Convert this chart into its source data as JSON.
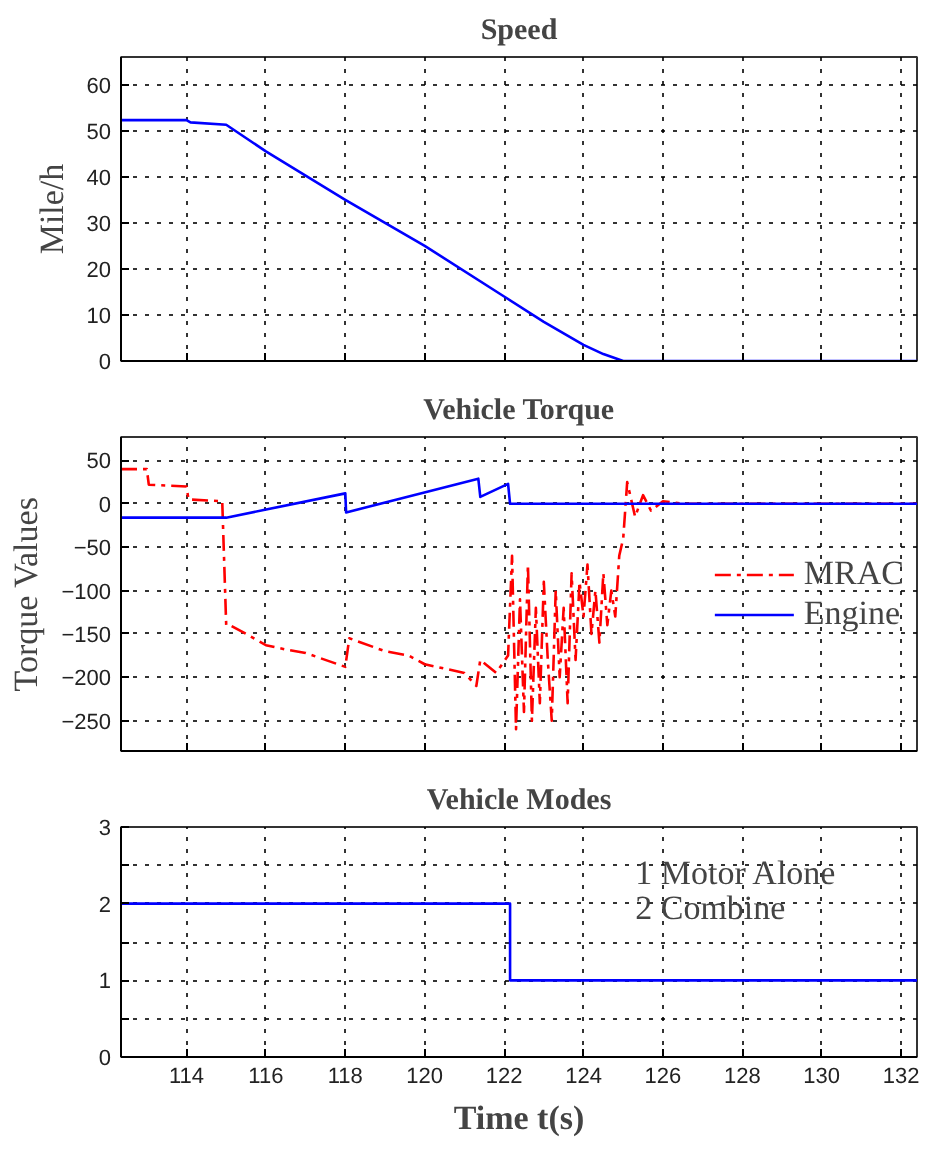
{
  "chart_data": [
    {
      "type": "line",
      "title": "Speed",
      "ylabel": "Mile/h",
      "xlim": [
        112.35,
        132.4
      ],
      "ylim": [
        0,
        66
      ],
      "xticks": [
        114,
        116,
        118,
        120,
        122,
        124,
        126,
        128,
        130,
        132
      ],
      "yticks": [
        0,
        10,
        20,
        30,
        40,
        50,
        60
      ],
      "tick_labels": "y",
      "grid": true,
      "line_style": "solid",
      "series": [
        {
          "color": "#0000ff",
          "x": [
            112.35,
            114.0,
            114.1,
            115.0,
            116.0,
            118.0,
            120.0,
            122.0,
            123.0,
            124.0,
            124.5,
            125.0,
            132.4
          ],
          "values": [
            52.3,
            52.3,
            51.8,
            51.3,
            45.5,
            35,
            25,
            14,
            8.5,
            3.5,
            1.5,
            0,
            0
          ]
        }
      ]
    },
    {
      "type": "line",
      "title": "Vehicle Torque",
      "ylabel": "Torque Values",
      "xlim": [
        112.35,
        132.4
      ],
      "ylim": [
        -285,
        77
      ],
      "xticks": [
        114,
        116,
        118,
        120,
        122,
        124,
        126,
        128,
        130,
        132
      ],
      "yticks": [
        -250,
        -200,
        -150,
        -100,
        -50,
        0,
        50
      ],
      "tick_labels": "y",
      "grid": true,
      "legend": "right",
      "series": [
        {
          "name": "MRAC",
          "color": "#ff0000",
          "line_style": "dashed",
          "x": [
            112.35,
            113.0,
            113.05,
            114.0,
            114.05,
            114.9,
            115.0,
            115.1,
            115.5,
            116.0,
            116.5,
            117.0,
            118.0,
            118.1,
            119.0,
            119.6,
            120.0,
            121.0,
            121.3,
            121.4,
            121.8,
            122.1,
            122.2,
            122.3,
            122.4,
            122.5,
            122.6,
            122.7,
            122.8,
            122.9,
            123.0,
            123.1,
            123.2,
            123.3,
            123.4,
            123.5,
            123.6,
            123.7,
            123.8,
            123.9,
            124.0,
            124.1,
            124.2,
            124.3,
            124.4,
            124.5,
            124.6,
            124.7,
            124.8,
            124.9,
            125.0,
            125.1,
            125.3,
            125.5,
            125.7,
            126.0,
            126.5,
            132.4
          ],
          "values": [
            40,
            40,
            22,
            20,
            5,
            3,
            -140,
            -140,
            -150,
            -163,
            -168,
            -172,
            -188,
            -155,
            -170,
            -175,
            -185,
            -195,
            -210,
            -180,
            -195,
            -175,
            -60,
            -260,
            -110,
            -240,
            -70,
            -250,
            -120,
            -230,
            -90,
            -180,
            -250,
            -100,
            -200,
            -120,
            -230,
            -80,
            -180,
            -90,
            -130,
            -70,
            -150,
            -100,
            -160,
            -80,
            -140,
            -100,
            -130,
            -60,
            -40,
            25,
            -15,
            10,
            -8,
            3,
            0,
            0
          ]
        },
        {
          "name": "Engine",
          "color": "#0000ff",
          "line_style": "solid",
          "x": [
            112.35,
            115.0,
            118.0,
            118.02,
            121.35,
            121.4,
            122.1,
            122.15,
            132.4
          ],
          "values": [
            -16,
            -16,
            12,
            -10,
            29,
            8,
            23,
            0,
            0
          ]
        }
      ]
    },
    {
      "type": "step",
      "title": "Vehicle Modes",
      "xlabel": "Time t(s)",
      "xlim": [
        112.35,
        132.4
      ],
      "ylim": [
        0,
        3
      ],
      "xticks": [
        114,
        116,
        118,
        120,
        122,
        124,
        126,
        128,
        130,
        132
      ],
      "yticks": [
        0,
        {
          "value": 0.5,
          "label": null
        },
        1,
        {
          "value": 1.5,
          "label": null
        },
        2,
        {
          "value": 2.5,
          "label": null
        },
        3
      ],
      "grid": true,
      "line_style": "solid",
      "annotations": [
        "1 Motor Alone",
        "2 Combine"
      ],
      "series": [
        {
          "color": "#0000ff",
          "x": [
            112.35,
            122.15,
            132.4
          ],
          "values": [
            2,
            1,
            1
          ]
        }
      ]
    }
  ]
}
